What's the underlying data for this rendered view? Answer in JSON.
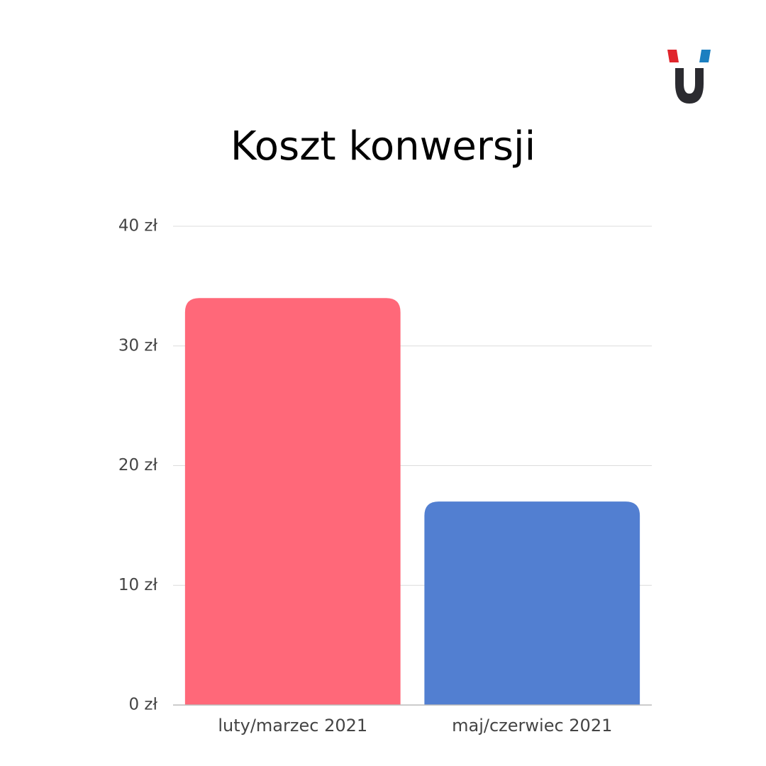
{
  "chart_data": {
    "type": "bar",
    "title": "Koszt konwersji",
    "categories": [
      "luty/marzec 2021",
      "maj/czerwiec 2021"
    ],
    "values": [
      34,
      17
    ],
    "colors": [
      "#ff6879",
      "#527fd1"
    ],
    "ylim": [
      0,
      40
    ],
    "yticks": [
      {
        "value": 0,
        "label": "0 zł"
      },
      {
        "value": 10,
        "label": "10 zł"
      },
      {
        "value": 20,
        "label": "20 zł"
      },
      {
        "value": 30,
        "label": "30 zł"
      },
      {
        "value": 40,
        "label": "40 zł"
      }
    ],
    "grid": true
  }
}
